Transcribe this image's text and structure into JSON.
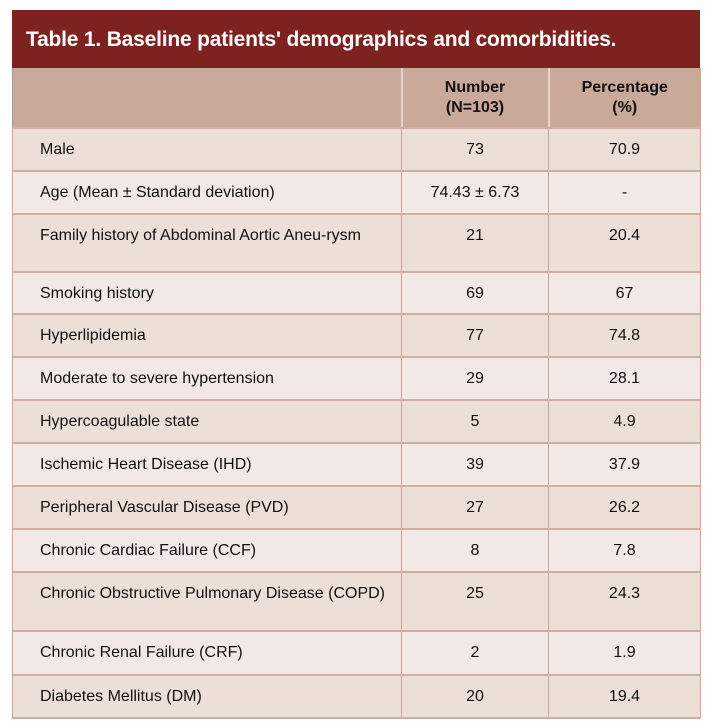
{
  "title": {
    "label": "Table 1.",
    "text": "Baseline patients' demographics and comorbidities."
  },
  "headers": [
    "",
    "Number\n(N=103)",
    "Percentage\n(%)"
  ],
  "header_lines": {
    "number": [
      "Number",
      "(N=103)"
    ],
    "percentage": [
      "Percentage",
      "(%)"
    ]
  },
  "rows": [
    {
      "label": "Male",
      "number": "73",
      "percentage": "70.9"
    },
    {
      "label": "Age (Mean ± Standard deviation)",
      "number": "74.43 ± 6.73",
      "percentage": "-"
    },
    {
      "label": "Family history of Abdominal Aortic Aneu-rysm",
      "number": "21",
      "percentage": "20.4"
    },
    {
      "label": "Smoking history",
      "number": "69",
      "percentage": "67"
    },
    {
      "label": "Hyperlipidemia",
      "number": "77",
      "percentage": "74.8"
    },
    {
      "label": "Moderate to severe hypertension",
      "number": "29",
      "percentage": "28.1"
    },
    {
      "label": "Hypercoagulable state",
      "number": "5",
      "percentage": "4.9"
    },
    {
      "label": "Ischemic Heart Disease (IHD)",
      "number": "39",
      "percentage": "37.9"
    },
    {
      "label": "Peripheral Vascular Disease (PVD)",
      "number": "27",
      "percentage": "26.2"
    },
    {
      "label": "Chronic Cardiac Failure (CCF)",
      "number": "8",
      "percentage": "7.8"
    },
    {
      "label": "Chronic Obstructive Pulmonary Disease (COPD)",
      "number": "25",
      "percentage": "24.3"
    },
    {
      "label": "Chronic Renal Failure (CRF)",
      "number": "2",
      "percentage": "1.9"
    },
    {
      "label": "Diabetes Mellitus (DM)",
      "number": "20",
      "percentage": "19.4"
    }
  ],
  "colors": {
    "title_bg": "#7e2220",
    "header_bg": "#caa99b",
    "row_odd": "#ecdfd8",
    "row_even": "#f2e9e6"
  }
}
